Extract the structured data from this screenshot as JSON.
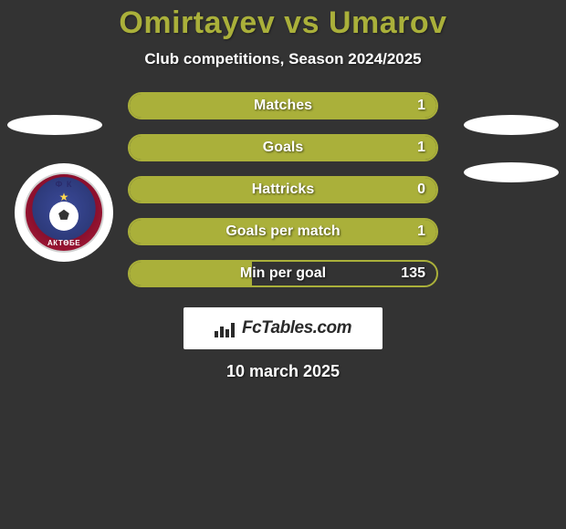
{
  "title": "Omirtayev vs Umarov",
  "subtitle": "Club competitions, Season 2024/2025",
  "colors": {
    "background": "#333333",
    "accent": "#aab03a",
    "text_primary": "#ffffff"
  },
  "stats": [
    {
      "label": "Matches",
      "value": "1",
      "fill": 100
    },
    {
      "label": "Goals",
      "value": "1",
      "fill": 100
    },
    {
      "label": "Hattricks",
      "value": "0",
      "fill": 100
    },
    {
      "label": "Goals per match",
      "value": "1",
      "fill": 100
    },
    {
      "label": "Min per goal",
      "value": "135",
      "fill": 40
    }
  ],
  "club": {
    "top_text": "Ф К",
    "bottom_text": "АКТӨБЕ"
  },
  "brand": {
    "text": "FcTables.com"
  },
  "date": "10 march 2025"
}
